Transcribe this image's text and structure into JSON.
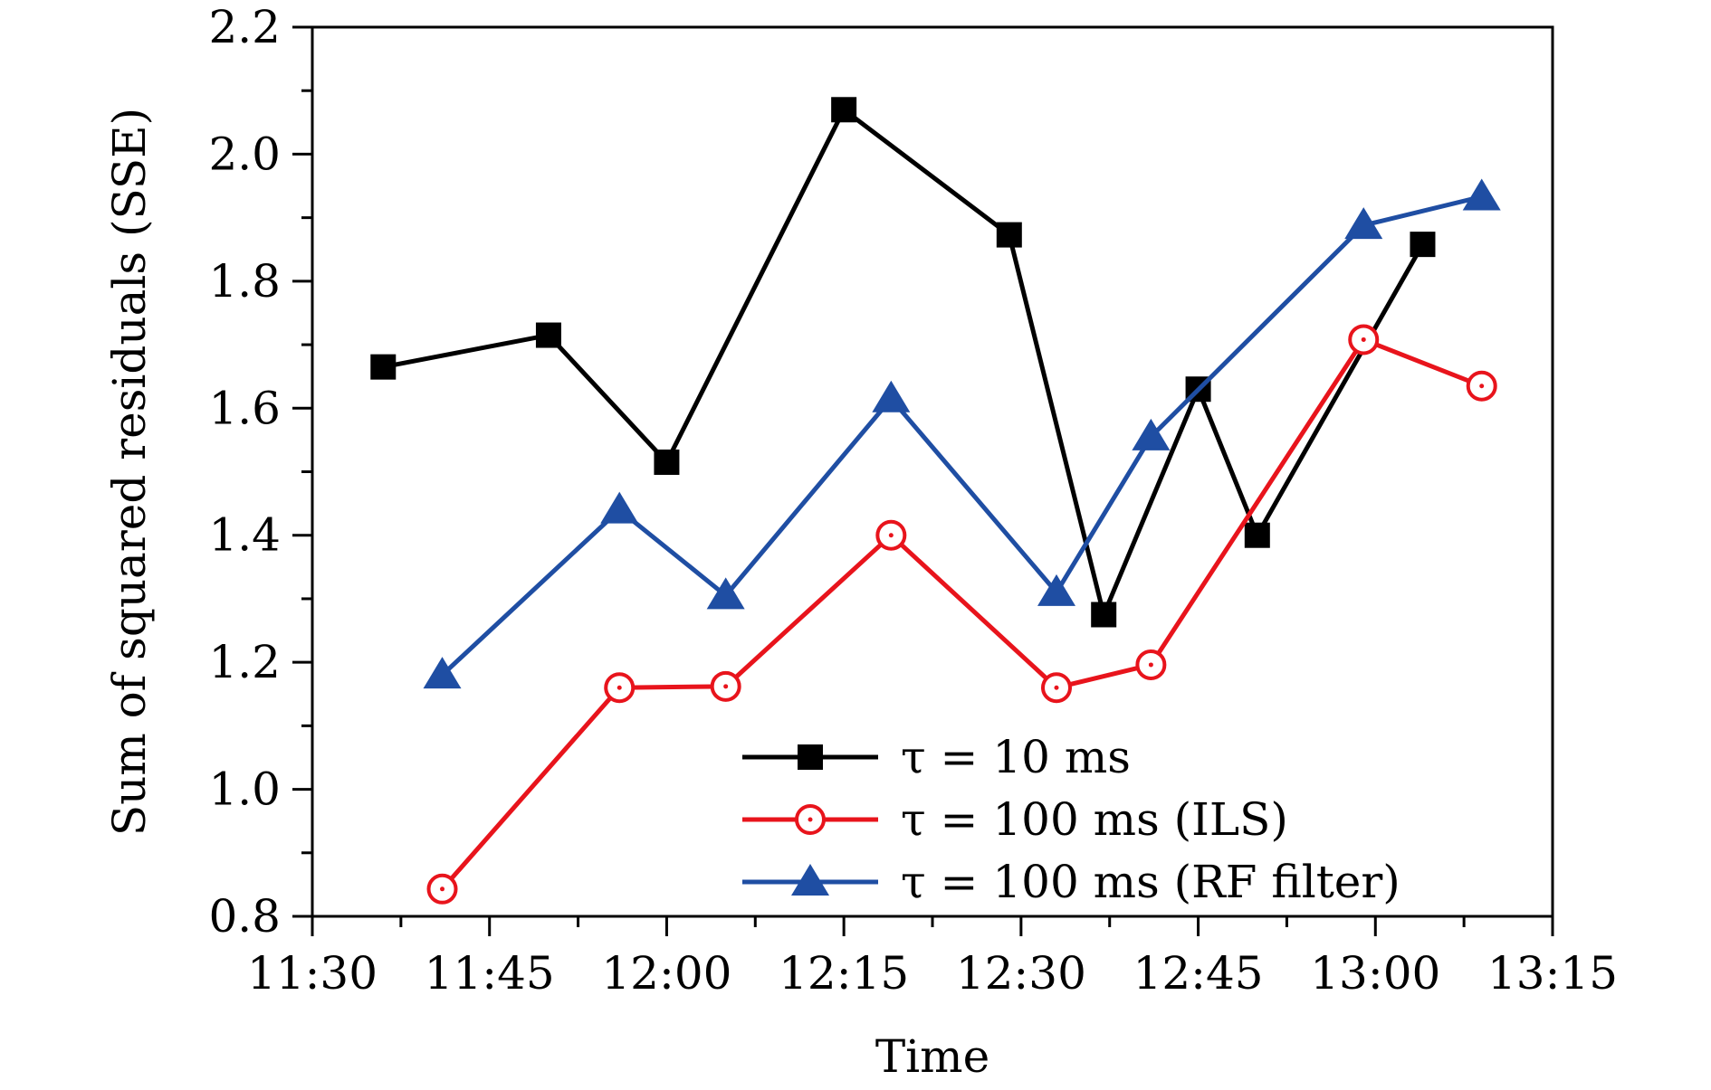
{
  "chart_data": {
    "type": "line",
    "title": "",
    "xlabel": "Time",
    "ylabel": "Sum of squared residuals (SSE)",
    "x_tick_labels": [
      "11:30",
      "11:45",
      "12:00",
      "12:15",
      "12:30",
      "12:45",
      "13:00",
      "13:15"
    ],
    "y_tick_labels": [
      "0.8",
      "1.0",
      "1.2",
      "1.4",
      "1.6",
      "1.8",
      "2.0",
      "2.2"
    ],
    "xlim_minutes": [
      690,
      795
    ],
    "ylim": [
      0.8,
      2.2
    ],
    "x_major_step_minutes": 15,
    "y_major_step": 0.2,
    "legend_position": "bottom-right",
    "series": [
      {
        "name": "τ = 10 ms",
        "legend_label": "τ = 10 ms",
        "color": "#000000",
        "marker": "square-filled",
        "x_minutes": [
          696,
          710,
          720,
          735,
          749,
          757,
          765,
          770,
          784
        ],
        "values": [
          1.665,
          1.715,
          1.515,
          2.07,
          1.873,
          1.275,
          1.63,
          1.4,
          1.858
        ]
      },
      {
        "name": "τ = 100 ms (ILS)",
        "legend_label": "τ = 100 ms (ILS)",
        "color": "#e8141c",
        "marker": "circle-open-dot",
        "x_minutes": [
          701,
          716,
          725,
          739,
          753,
          761,
          779,
          789
        ],
        "values": [
          0.843,
          1.16,
          1.162,
          1.4,
          1.16,
          1.196,
          1.708,
          1.635
        ]
      },
      {
        "name": "τ = 100 ms (RF filter)",
        "legend_label": "τ = 100 ms (RF filter)",
        "color": "#1f4ea3",
        "marker": "triangle-filled",
        "x_minutes": [
          701,
          716,
          725,
          739,
          753,
          761,
          779,
          789
        ],
        "values": [
          1.18,
          1.44,
          1.305,
          1.615,
          1.31,
          1.555,
          1.888,
          1.933
        ]
      }
    ]
  }
}
